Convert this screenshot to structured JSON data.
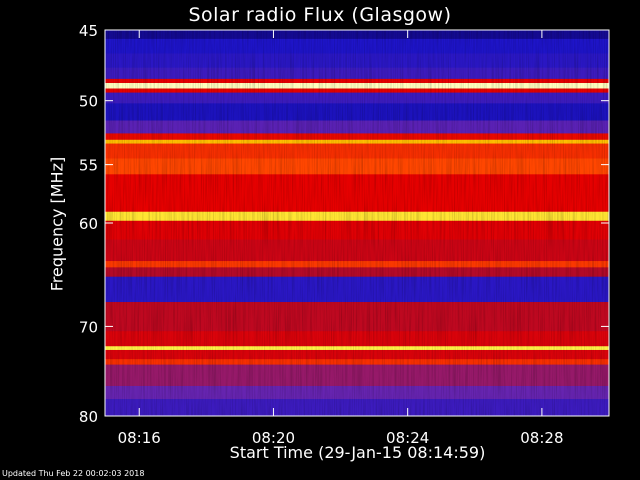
{
  "chart_data": {
    "type": "heatmap",
    "title": "Solar radio Flux (Glasgow)",
    "xlabel": "Start Time (29-Jan-15 08:14:59)",
    "ylabel": "Frequency [MHz]",
    "x_ticks": [
      "08:16",
      "08:20",
      "08:24",
      "08:28"
    ],
    "x_tick_minutes": [
      16,
      20,
      24,
      28
    ],
    "xlim_minutes": [
      14.98,
      30.0
    ],
    "y_ticks": [
      45,
      50,
      55,
      60,
      70,
      80
    ],
    "ylim": [
      80,
      45
    ],
    "y_scale": "log",
    "colormap": "rainbow (blue-red-yellow-white)",
    "bands": [
      {
        "f0": 45.0,
        "f1": 45.6,
        "level": 0.1
      },
      {
        "f0": 45.6,
        "f1": 46.6,
        "level": 0.2
      },
      {
        "f0": 46.6,
        "f1": 47.6,
        "level": 0.22
      },
      {
        "f0": 47.6,
        "f1": 48.4,
        "level": 0.25
      },
      {
        "f0": 48.4,
        "f1": 48.7,
        "level": 0.6
      },
      {
        "f0": 48.7,
        "f1": 49.1,
        "level": 0.98
      },
      {
        "f0": 49.1,
        "f1": 49.4,
        "level": 0.6
      },
      {
        "f0": 49.4,
        "f1": 50.2,
        "level": 0.25
      },
      {
        "f0": 50.2,
        "f1": 51.5,
        "level": 0.18
      },
      {
        "f0": 51.5,
        "f1": 52.5,
        "level": 0.3
      },
      {
        "f0": 52.5,
        "f1": 53.0,
        "level": 0.62
      },
      {
        "f0": 53.0,
        "f1": 53.3,
        "level": 0.85
      },
      {
        "f0": 53.3,
        "f1": 54.5,
        "level": 0.7
      },
      {
        "f0": 54.5,
        "f1": 55.8,
        "level": 0.75
      },
      {
        "f0": 55.8,
        "f1": 59.0,
        "level": 0.6
      },
      {
        "f0": 59.0,
        "f1": 59.8,
        "level": 0.9
      },
      {
        "f0": 59.8,
        "f1": 61.5,
        "level": 0.58
      },
      {
        "f0": 61.5,
        "f1": 63.5,
        "level": 0.52
      },
      {
        "f0": 63.5,
        "f1": 64.1,
        "level": 0.72
      },
      {
        "f0": 64.1,
        "f1": 65.0,
        "level": 0.45
      },
      {
        "f0": 65.0,
        "f1": 67.5,
        "level": 0.22
      },
      {
        "f0": 67.5,
        "f1": 70.5,
        "level": 0.48
      },
      {
        "f0": 70.5,
        "f1": 72.1,
        "level": 0.56
      },
      {
        "f0": 72.1,
        "f1": 72.5,
        "level": 0.92
      },
      {
        "f0": 72.5,
        "f1": 73.5,
        "level": 0.56
      },
      {
        "f0": 73.5,
        "f1": 74.1,
        "level": 0.7
      },
      {
        "f0": 74.1,
        "f1": 76.5,
        "level": 0.4
      },
      {
        "f0": 76.5,
        "f1": 78.0,
        "level": 0.32
      },
      {
        "f0": 78.0,
        "f1": 80.0,
        "level": 0.25
      }
    ],
    "grid": false
  },
  "footer": {
    "updated": "Updated Thu Feb 22 00:02:03 2018"
  }
}
